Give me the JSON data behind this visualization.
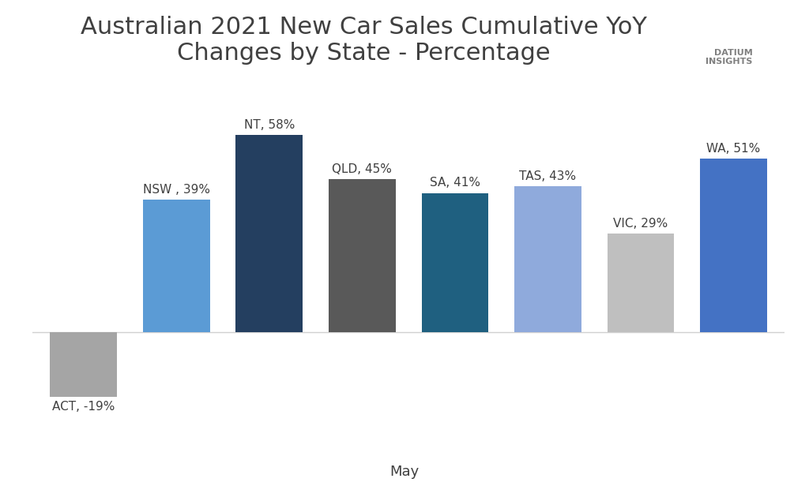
{
  "title": "Australian 2021 New Car Sales Cumulative YoY\nChanges by State - Percentage",
  "xlabel": "May",
  "categories": [
    "ACT",
    "NSW",
    "NT",
    "QLD",
    "SA",
    "TAS",
    "VIC",
    "WA"
  ],
  "values": [
    -19,
    39,
    58,
    45,
    41,
    43,
    29,
    51
  ],
  "bar_colors": [
    "#a5a5a5",
    "#5b9bd5",
    "#243f60",
    "#595959",
    "#1f6080",
    "#8faadc",
    "#bfbfbf",
    "#4472c4"
  ],
  "labels": [
    "ACT, -19%",
    "NSW , 39%",
    "NT, 58%",
    "QLD, 45%",
    "SA, 41%",
    "TAS, 43%",
    "VIC, 29%",
    "WA, 51%"
  ],
  "background_color": "#ffffff",
  "ylim": [
    -28,
    72
  ],
  "title_fontsize": 22,
  "label_fontsize": 11
}
